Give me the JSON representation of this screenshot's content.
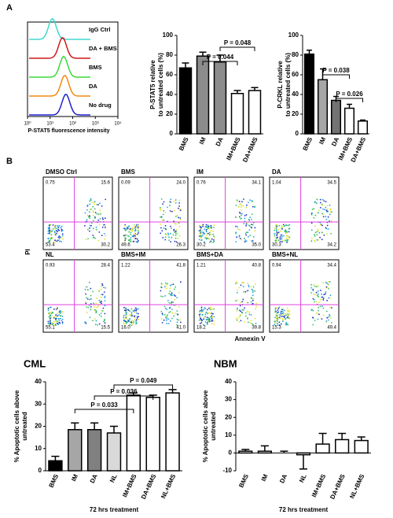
{
  "panel_labels": [
    "A",
    "B"
  ],
  "chart_data": [
    {
      "type": "flow",
      "x_label": "P-STAT5 fluorescence intensity",
      "log": true,
      "xlim": [
        1,
        10000
      ],
      "xticks": [
        {
          "value": 1,
          "label": "10⁰"
        },
        {
          "value": 10,
          "label": "10¹"
        },
        {
          "value": 100,
          "label": "10²"
        },
        {
          "value": 1000,
          "label": "10³"
        },
        {
          "value": 10000,
          "label": "10⁴"
        }
      ],
      "labels": [
        "IgG Ctrl",
        "DA + BMS",
        "BMS",
        "DA",
        "No drug"
      ],
      "colors": [
        "#40d8d0",
        "#d01818",
        "#38d838",
        "#f08a10",
        "#2020d0"
      ]
    },
    {
      "type": "bar",
      "y_label": [
        "P-STAT5 relative",
        "to untreated cells (%)"
      ],
      "categories": [
        "BMS",
        "IM",
        "DA",
        "IM+BMS",
        "DA+BMS"
      ],
      "values": [
        67,
        79,
        73,
        41,
        44
      ],
      "errors": [
        5,
        4,
        7,
        3,
        3
      ],
      "colors": [
        "#000000",
        "#8c8c8c",
        "#8c8c8c",
        "#ffffff",
        "#ffffff"
      ],
      "ylim": [
        0,
        100
      ],
      "yticks": [
        0,
        20,
        40,
        60,
        80,
        100
      ],
      "annotations": [
        "P = 0.044",
        "P = 0.048"
      ]
    },
    {
      "type": "bar",
      "y_label": [
        "P-CRKL relative",
        "to untreated cells (%)"
      ],
      "categories": [
        "BMS",
        "IM",
        "DA",
        "IM+BMS",
        "DA+BMS"
      ],
      "values": [
        81,
        55,
        34,
        26,
        13
      ],
      "errors": [
        4,
        11,
        4,
        4,
        1
      ],
      "colors": [
        "#000000",
        "#a6a6a6",
        "#737373",
        "#ffffff",
        "#ffffff"
      ],
      "ylim": [
        0,
        100
      ],
      "yticks": [
        0,
        20,
        40,
        60,
        80,
        100
      ],
      "annotations": [
        "P = 0.038",
        "P = 0.026"
      ]
    },
    {
      "type": "quadrants",
      "y_label": "PI",
      "x_label": "Annexin V",
      "panels": [
        {
          "name": "DMSO Ctrl",
          "values": [
            "0.75",
            "15.6",
            "53.4",
            "30.2"
          ]
        },
        {
          "name": "BMS",
          "values": [
            "0.09",
            "24.0",
            "49.6",
            "26.3"
          ]
        },
        {
          "name": "IM",
          "values": [
            "0.76",
            "34.1",
            "30.2",
            "35.0"
          ]
        },
        {
          "name": "DA",
          "values": [
            "1.04",
            "34.5",
            "30.3",
            "34.2"
          ]
        },
        {
          "name": "NL",
          "values": [
            "0.93",
            "28.4",
            "55.1",
            "15.5"
          ]
        },
        {
          "name": "BMS+IM",
          "values": [
            "1.22",
            "41.8",
            "16.0",
            "41.0"
          ]
        },
        {
          "name": "BMS+DA",
          "values": [
            "1.21",
            "40.8",
            "18.2",
            "39.8"
          ]
        },
        {
          "name": "BMS+NL",
          "values": [
            "0.94",
            "34.4",
            "15.3",
            "49.4"
          ]
        }
      ]
    },
    {
      "type": "bar",
      "title": "CML",
      "y_label": [
        "% Apoptotic cells above",
        "untreated"
      ],
      "x_title": "72 hrs treatment",
      "categories": [
        "BMS",
        "IM",
        "DA",
        "NL",
        "IM+BMS",
        "DA+BMS",
        "NL+BMS"
      ],
      "values": [
        4.5,
        18.5,
        18.5,
        17,
        34,
        33,
        35
      ],
      "errors": [
        2,
        3,
        3,
        3,
        1,
        1,
        1.5
      ],
      "colors": [
        "#000000",
        "#a6a6a6",
        "#808080",
        "#d9d9d9",
        "#ffffff",
        "#ffffff",
        "#ffffff"
      ],
      "ylim": [
        0,
        40
      ],
      "yticks": [
        0,
        10,
        20,
        30,
        40
      ],
      "annotations": [
        "P = 0.033",
        "P = 0.036",
        "P = 0.049"
      ]
    },
    {
      "type": "bar",
      "title": "NBM",
      "y_label": [
        "% Apoptotic cells above",
        "untreated"
      ],
      "x_title": "72 hrs treatment",
      "categories": [
        "BMS",
        "IM",
        "DA",
        "NL",
        "IM+BMS",
        "DA+BMS",
        "NL+BMS"
      ],
      "values": [
        1,
        1,
        0,
        -1,
        5,
        7.5,
        7
      ],
      "errors": [
        1,
        3,
        1,
        8,
        6,
        3.5,
        2
      ],
      "colors": [
        "#ffffff",
        "#ffffff",
        "#ffffff",
        "#ffffff",
        "#ffffff",
        "#ffffff",
        "#ffffff"
      ],
      "ylim": [
        -10,
        40
      ],
      "yticks": [
        -10,
        0,
        10,
        20,
        30,
        40
      ],
      "annotations": []
    }
  ]
}
